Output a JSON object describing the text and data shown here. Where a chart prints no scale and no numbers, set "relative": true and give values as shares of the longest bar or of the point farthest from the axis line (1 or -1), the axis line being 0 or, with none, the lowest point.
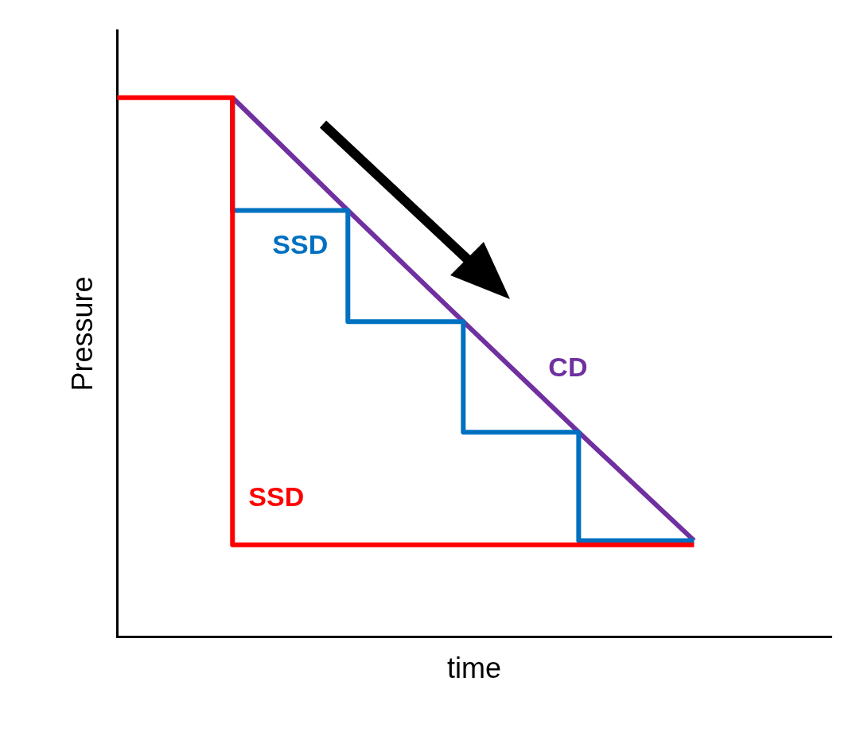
{
  "chart_data": {
    "type": "line",
    "relative": true,
    "xlabel": "time",
    "ylabel": "Pressure",
    "categories": [
      null,
      null,
      null,
      null,
      null,
      null
    ],
    "marker": "none",
    "legend": false,
    "grid": false,
    "series": [
      {
        "name": "SSD",
        "type": "step",
        "color": "#ff0000",
        "values": [
          1,
          1,
          0.171,
          0.171,
          0.171,
          0.171
        ]
      },
      {
        "name": "SSD",
        "type": "step",
        "color": "#0070c0",
        "values": [
          null,
          1,
          0.791,
          0.585,
          0.38,
          0.179
        ]
      },
      {
        "name": "CD",
        "type": "line",
        "color": "#7030a0",
        "values": [
          null,
          1,
          0.791,
          0.585,
          0.38,
          0.179
        ]
      }
    ]
  }
}
